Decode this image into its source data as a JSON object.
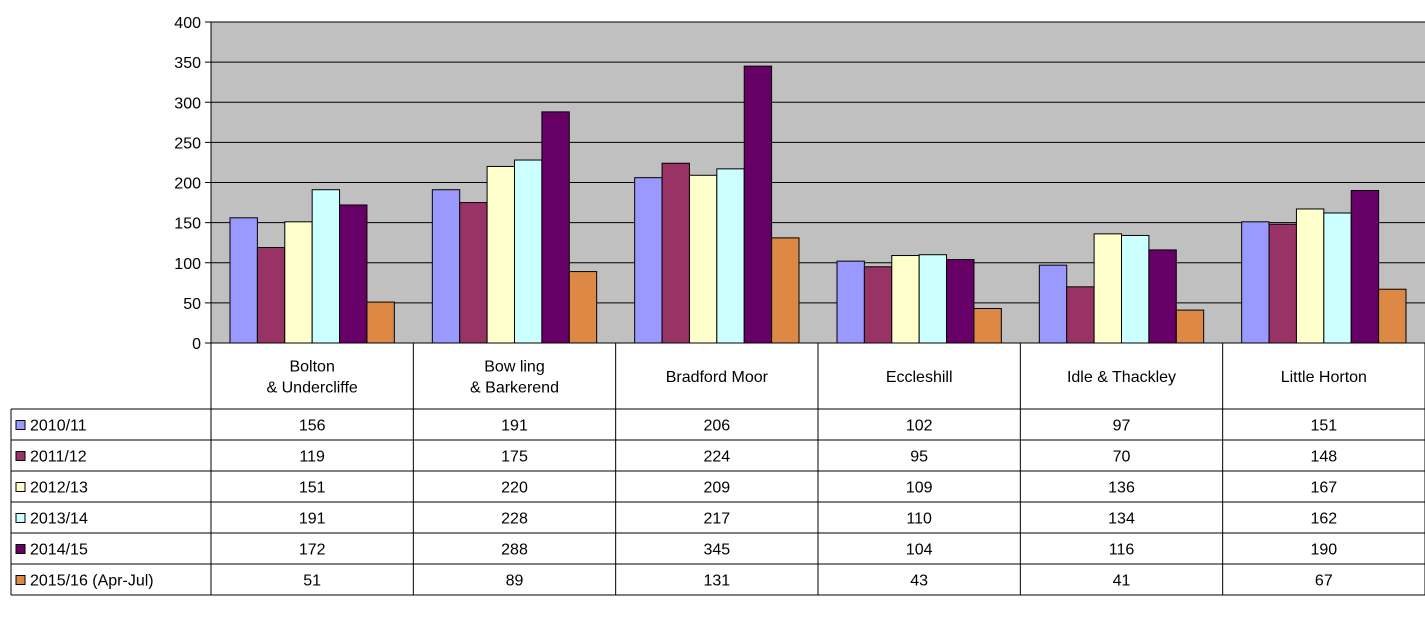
{
  "chart_data": {
    "type": "bar",
    "title": "",
    "xlabel": "",
    "ylabel": "",
    "ylim": [
      0,
      400
    ],
    "ytick_step": 50,
    "grid": true,
    "plot_background": "#c0c0c0",
    "data_table": true,
    "categories": [
      [
        "Bolton",
        "& Undercliffe"
      ],
      [
        "Bow ling",
        "& Barkerend"
      ],
      [
        "Bradford Moor"
      ],
      [
        "Eccleshill"
      ],
      [
        "Idle & Thackley"
      ],
      [
        "Little Horton"
      ]
    ],
    "series": [
      {
        "name": "2010/11",
        "color": "#9999ff",
        "values": [
          156,
          191,
          206,
          102,
          97,
          151
        ]
      },
      {
        "name": "2011/12",
        "color": "#993366",
        "values": [
          119,
          175,
          224,
          95,
          70,
          148
        ]
      },
      {
        "name": "2012/13",
        "color": "#ffffcc",
        "values": [
          151,
          220,
          209,
          109,
          136,
          167
        ]
      },
      {
        "name": "2013/14",
        "color": "#ccffff",
        "values": [
          191,
          228,
          217,
          110,
          134,
          162
        ]
      },
      {
        "name": "2014/15",
        "color": "#660066",
        "values": [
          172,
          288,
          345,
          104,
          116,
          190
        ]
      },
      {
        "name": "2015/16 (Apr-Jul)",
        "color": "#dd8844",
        "values": [
          51,
          89,
          131,
          43,
          41,
          67
        ]
      }
    ]
  }
}
